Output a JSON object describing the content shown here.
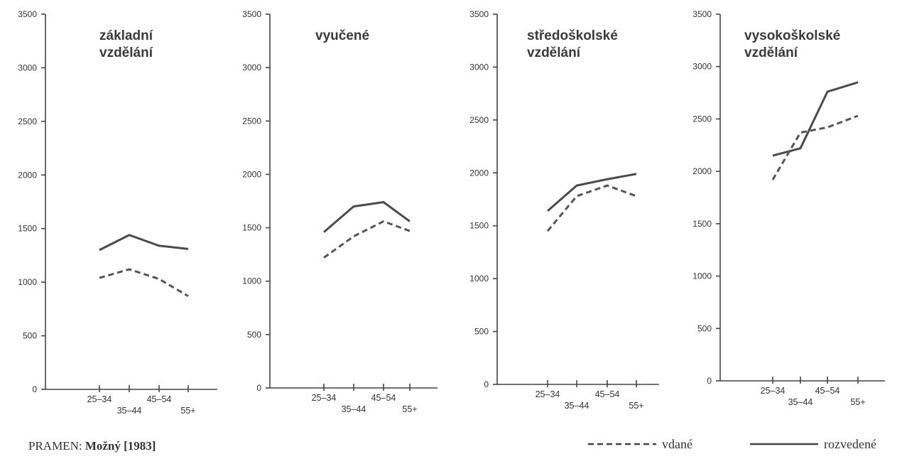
{
  "chart_data": [
    {
      "type": "line",
      "title": "základní\nvzdělání",
      "categories": [
        "25–34",
        "35–44",
        "45–54",
        "55+"
      ],
      "ylim": [
        0,
        3500
      ],
      "yticks": [
        0,
        500,
        1000,
        1500,
        2000,
        2500,
        3000,
        3500
      ],
      "series": [
        {
          "name": "rozvedené",
          "values": [
            1300,
            1440,
            1340,
            1310
          ]
        },
        {
          "name": "vdané",
          "values": [
            1040,
            1120,
            1030,
            870
          ]
        }
      ]
    },
    {
      "type": "line",
      "title": "vyučené",
      "categories": [
        "25–34",
        "35–44",
        "45–54",
        "55+"
      ],
      "ylim": [
        0,
        3500
      ],
      "yticks": [
        0,
        500,
        1000,
        1500,
        2000,
        2500,
        3000,
        3500
      ],
      "series": [
        {
          "name": "rozvedené",
          "values": [
            1460,
            1700,
            1740,
            1560
          ]
        },
        {
          "name": "vdané",
          "values": [
            1220,
            1420,
            1560,
            1470
          ]
        }
      ]
    },
    {
      "type": "line",
      "title": "středoškolské\nvzdělání",
      "categories": [
        "25–34",
        "35–44",
        "45–54",
        "55+"
      ],
      "ylim": [
        0,
        3500
      ],
      "yticks": [
        0,
        500,
        1000,
        1500,
        2000,
        2500,
        3000,
        3500
      ],
      "series": [
        {
          "name": "rozvedené",
          "values": [
            1640,
            1880,
            1940,
            1990
          ]
        },
        {
          "name": "vdané",
          "values": [
            1450,
            1780,
            1880,
            1780
          ]
        }
      ]
    },
    {
      "type": "line",
      "title": "vysokoškolské\nvzdělání",
      "categories": [
        "25–34",
        "35–44",
        "45–54",
        "55+"
      ],
      "ylim": [
        0,
        3500
      ],
      "yticks": [
        0,
        500,
        1000,
        1500,
        2000,
        2500,
        3000,
        3500
      ],
      "series": [
        {
          "name": "rozvedené",
          "values": [
            2150,
            2220,
            2760,
            2850
          ]
        },
        {
          "name": "vdané",
          "values": [
            1920,
            2370,
            2420,
            2530
          ]
        }
      ]
    }
  ],
  "legend": {
    "vdane_label": "vdané",
    "rozvedene_label": "rozvedené"
  },
  "source": {
    "prefix": "PRAMEN:",
    "citation": "Možný [1983]"
  }
}
